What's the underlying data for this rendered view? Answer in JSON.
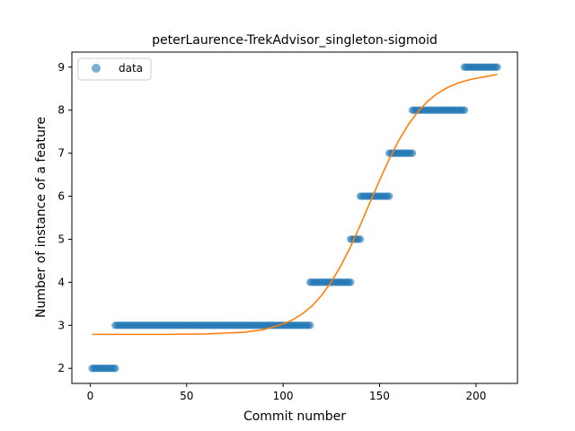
{
  "chart_data": {
    "type": "scatter",
    "title": "peterLaurence-TrekAdvisor_singleton-sigmoid",
    "xlabel": "Commit number",
    "ylabel": "Number of instance of a feature",
    "xlim": [
      -9.5,
      221.5
    ],
    "ylim": [
      1.65,
      9.35
    ],
    "x_ticks": [
      0,
      50,
      100,
      150,
      200
    ],
    "y_ticks": [
      2,
      3,
      4,
      5,
      6,
      7,
      8,
      9
    ],
    "grid": false,
    "legend": {
      "position": "top-left",
      "entries": [
        "data"
      ]
    },
    "colors": {
      "data": "#1f77b4",
      "fit": "#ff7f0e"
    },
    "series": [
      {
        "name": "data",
        "kind": "scatter",
        "segments": [
          {
            "x_start": 1,
            "x_end": 13,
            "y": 2
          },
          {
            "x_start": 13,
            "x_end": 114,
            "y": 3
          },
          {
            "x_start": 114,
            "x_end": 135,
            "y": 4
          },
          {
            "x_start": 135,
            "x_end": 140,
            "y": 5
          },
          {
            "x_start": 140,
            "x_end": 155,
            "y": 6
          },
          {
            "x_start": 155,
            "x_end": 167,
            "y": 7
          },
          {
            "x_start": 167,
            "x_end": 194,
            "y": 8
          },
          {
            "x_start": 194,
            "x_end": 211,
            "y": 9
          }
        ]
      },
      {
        "name": "",
        "kind": "line",
        "x": [
          1,
          20,
          40,
          60,
          80,
          90,
          100,
          105,
          110,
          115,
          120,
          125,
          130,
          135,
          140,
          145,
          150,
          155,
          160,
          165,
          170,
          175,
          180,
          185,
          190,
          195,
          200,
          205,
          211
        ],
        "y": [
          2.79,
          2.79,
          2.79,
          2.8,
          2.84,
          2.9,
          3.03,
          3.13,
          3.27,
          3.45,
          3.7,
          4.01,
          4.39,
          4.83,
          5.33,
          5.85,
          6.37,
          6.86,
          7.3,
          7.67,
          7.97,
          8.21,
          8.39,
          8.52,
          8.62,
          8.69,
          8.74,
          8.78,
          8.83
        ]
      }
    ]
  }
}
